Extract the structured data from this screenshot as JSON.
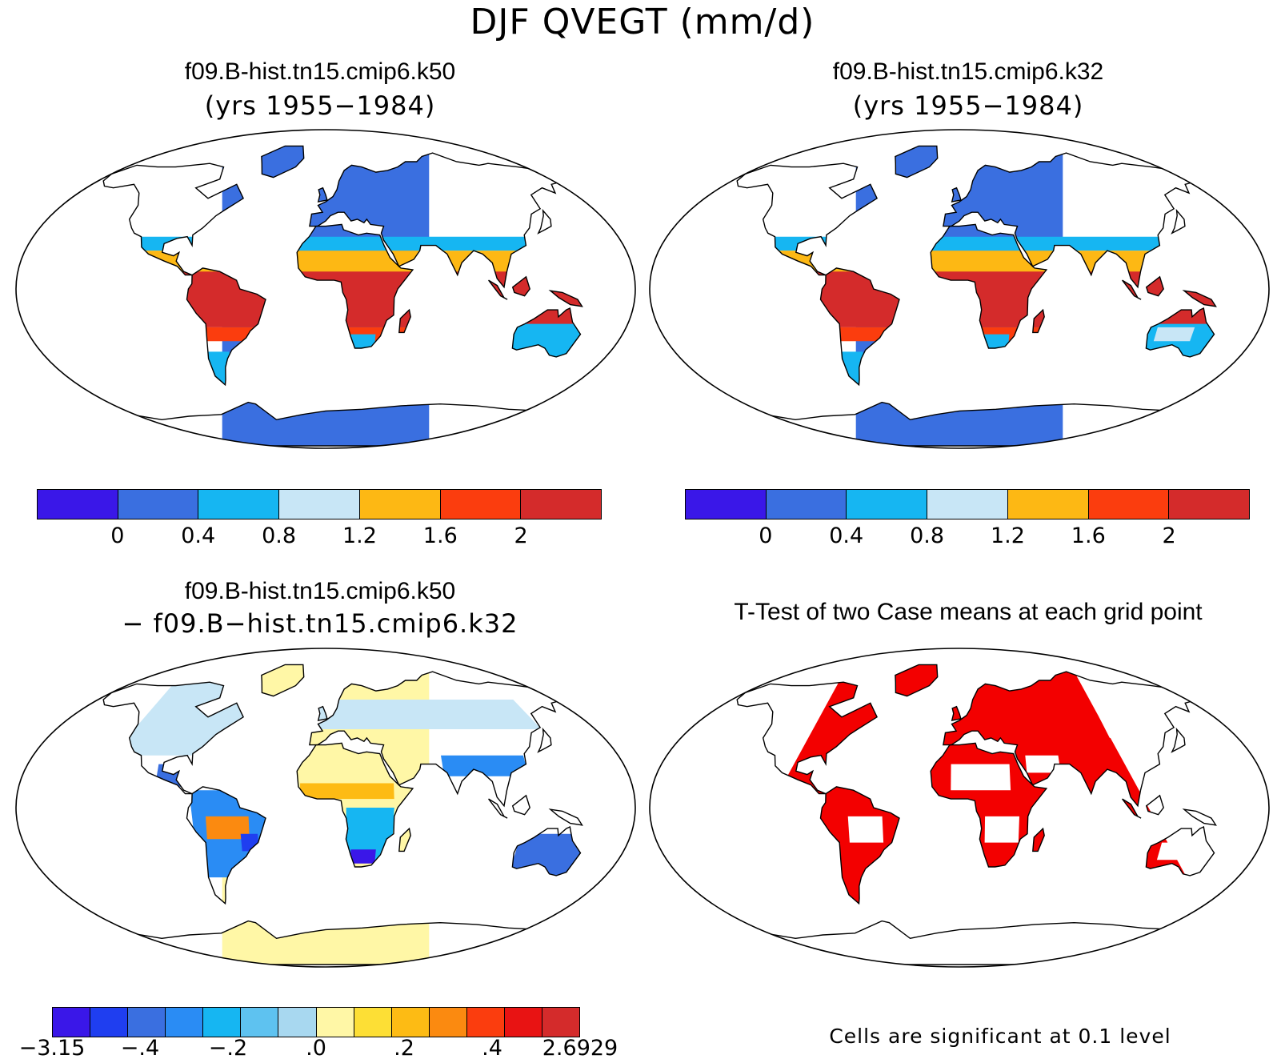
{
  "title": "DJF QVEGT (mm/d)",
  "panels": [
    {
      "title": "f09.B-hist.tn15.cmip6.k50",
      "subtitle": "(yrs 1955−1984)"
    },
    {
      "title": "f09.B-hist.tn15.cmip6.k32",
      "subtitle": "(yrs 1955−1984)"
    },
    {
      "title": "f09.B-hist.tn15.cmip6.k50",
      "subtitle": "− f09.B−hist.tn15.cmip6.k32"
    },
    {
      "title": "T-Test of two Case means at each grid point",
      "subtitle": ""
    }
  ],
  "legend_abs": {
    "colors": [
      "#3a17e8",
      "#3a6fe0",
      "#16b6f2",
      "#c8e6f6",
      "#fdb814",
      "#fb3d0e",
      "#d42b2b"
    ],
    "labels": [
      "0",
      "0.4",
      "0.8",
      "1.2",
      "1.6",
      "2"
    ]
  },
  "legend_diff": {
    "colors": [
      "#3a17e8",
      "#1f3ef0",
      "#3a6fe0",
      "#2a8cf4",
      "#16b6f2",
      "#5ec2f0",
      "#a8d8f0",
      "#fff7a6",
      "#fddf35",
      "#fdbb14",
      "#fb8a10",
      "#fb3d0e",
      "#e81313",
      "#d42b2b"
    ],
    "labels": [
      "−3.15",
      "−.4",
      "−.2",
      ".0",
      ".2",
      ".4",
      "2.6929"
    ]
  },
  "footnote": "Cells are significant at 0.1 level",
  "colors": {
    "land_abs_high": "#3a6fe0",
    "land_tropics": "#d42b2b",
    "diff_high": "#c8e6f6",
    "diff_low": "#fff7a6",
    "significant": "#f30000"
  }
}
